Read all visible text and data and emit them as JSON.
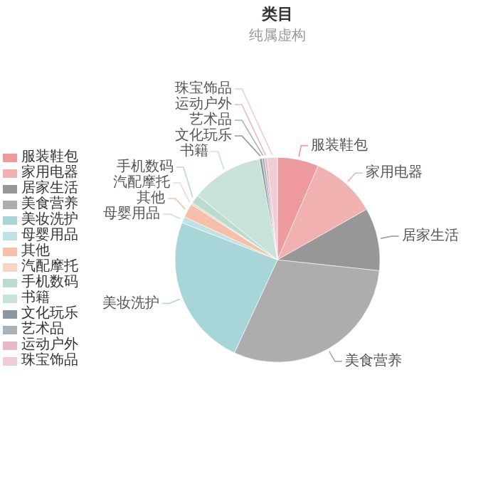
{
  "chart_data": {
    "type": "pie",
    "title": "类目",
    "subtitle": "纯属虚构",
    "categories": [
      "服装鞋包",
      "家用电器",
      "居家生活",
      "美食营养",
      "美妆洗护",
      "母婴用品",
      "其他",
      "汽配摩托",
      "手机数码",
      "书籍",
      "文化玩乐",
      "艺术品",
      "运动户外",
      "珠宝饰品"
    ],
    "values": [
      6.5,
      10.3,
      9.9,
      30.2,
      24,
      1,
      2.2,
      0.3,
      1.4,
      11.4,
      0.4,
      0.4,
      0.4,
      1.6
    ],
    "colors": [
      "#ee9a9d",
      "#f0b1b0",
      "#979797",
      "#adadad",
      "#a8d5d8",
      "#bde3e5",
      "#f5bfa9",
      "#f8d4c5",
      "#b9dccf",
      "#c9e2d9",
      "#8c96a0",
      "#a9b3bd",
      "#e9b8c3",
      "#efcdd4"
    ],
    "legend": "left"
  }
}
